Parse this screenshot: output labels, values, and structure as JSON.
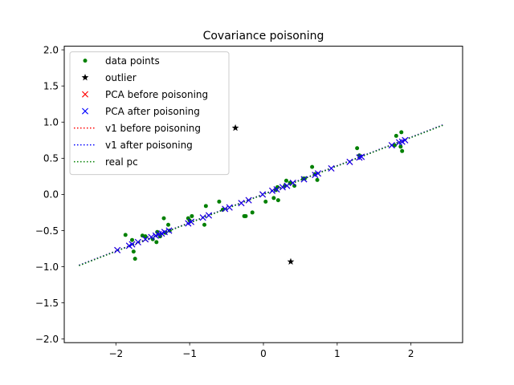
{
  "chart_data": {
    "type": "scatter",
    "title": "Covariance poisoning",
    "xlabel": "",
    "ylabel": "",
    "xlim": [
      -2.7,
      2.7
    ],
    "ylim": [
      -2.05,
      2.05
    ],
    "xticks": [
      -2,
      -1,
      0,
      1,
      2
    ],
    "xtick_labels": [
      "−2",
      "−1",
      "0",
      "1",
      "2"
    ],
    "yticks": [
      -2.0,
      -1.5,
      -1.0,
      -0.5,
      0.0,
      0.5,
      1.0,
      1.5,
      2.0
    ],
    "ytick_labels": [
      "−2.0",
      "−1.5",
      "−1.0",
      "−0.5",
      "0.0",
      "0.5",
      "1.0",
      "1.5",
      "2.0"
    ],
    "grid": false,
    "legend_position": "top-left",
    "series": [
      {
        "name": "data points",
        "marker": "dot",
        "color": "#008000",
        "points": [
          [
            -1.87,
            -0.56
          ],
          [
            -1.78,
            -0.63
          ],
          [
            -1.76,
            -0.79
          ],
          [
            -1.74,
            -0.89
          ],
          [
            -1.64,
            -0.57
          ],
          [
            -1.6,
            -0.58
          ],
          [
            -1.5,
            -0.62
          ],
          [
            -1.45,
            -0.66
          ],
          [
            -1.44,
            -0.52
          ],
          [
            -1.4,
            -0.58
          ],
          [
            -1.35,
            -0.33
          ],
          [
            -1.33,
            -0.53
          ],
          [
            -1.29,
            -0.42
          ],
          [
            -1.27,
            -0.5
          ],
          [
            -1.02,
            -0.33
          ],
          [
            -1.0,
            -0.36
          ],
          [
            -0.97,
            -0.3
          ],
          [
            -0.8,
            -0.42
          ],
          [
            -0.78,
            -0.16
          ],
          [
            -0.6,
            -0.1
          ],
          [
            -0.55,
            -0.21
          ],
          [
            -0.26,
            -0.3
          ],
          [
            -0.24,
            -0.3
          ],
          [
            -0.15,
            -0.25
          ],
          [
            0.03,
            -0.1
          ],
          [
            0.14,
            -0.05
          ],
          [
            0.17,
            0.06
          ],
          [
            0.19,
            0.1
          ],
          [
            0.2,
            -0.08
          ],
          [
            0.29,
            0.12
          ],
          [
            0.31,
            0.19
          ],
          [
            0.36,
            0.16
          ],
          [
            0.42,
            0.12
          ],
          [
            0.54,
            0.22
          ],
          [
            0.56,
            0.22
          ],
          [
            0.66,
            0.38
          ],
          [
            0.7,
            0.28
          ],
          [
            0.73,
            0.2
          ],
          [
            1.27,
            0.64
          ],
          [
            1.3,
            0.54
          ],
          [
            1.78,
            0.68
          ],
          [
            1.8,
            0.81
          ],
          [
            1.86,
            0.66
          ],
          [
            1.87,
            0.86
          ],
          [
            1.88,
            0.6
          ]
        ]
      },
      {
        "name": "outlier",
        "marker": "star",
        "color": "#000000",
        "points": [
          [
            -0.38,
            0.92
          ],
          [
            0.37,
            -0.93
          ]
        ]
      },
      {
        "name": "PCA before poisoning",
        "marker": "x",
        "color": "#ff0000",
        "points": [
          [
            -1.98,
            -0.77
          ],
          [
            -1.82,
            -0.71
          ],
          [
            -1.78,
            -0.69
          ],
          [
            -1.7,
            -0.66
          ],
          [
            -1.6,
            -0.62
          ],
          [
            -1.52,
            -0.59
          ],
          [
            -1.46,
            -0.57
          ],
          [
            -1.42,
            -0.55
          ],
          [
            -1.38,
            -0.54
          ],
          [
            -1.34,
            -0.52
          ],
          [
            -1.28,
            -0.5
          ],
          [
            -1.02,
            -0.4
          ],
          [
            -0.98,
            -0.38
          ],
          [
            -0.82,
            -0.32
          ],
          [
            -0.74,
            -0.29
          ],
          [
            -0.52,
            -0.2
          ],
          [
            -0.46,
            -0.18
          ],
          [
            -0.3,
            -0.12
          ],
          [
            -0.2,
            -0.08
          ],
          [
            -0.01,
            0.0
          ],
          [
            0.12,
            0.05
          ],
          [
            0.18,
            0.07
          ],
          [
            0.26,
            0.1
          ],
          [
            0.32,
            0.12
          ],
          [
            0.4,
            0.16
          ],
          [
            0.55,
            0.21
          ],
          [
            0.7,
            0.27
          ],
          [
            0.74,
            0.29
          ],
          [
            0.92,
            0.36
          ],
          [
            1.17,
            0.45
          ],
          [
            1.3,
            0.51
          ],
          [
            1.33,
            0.52
          ],
          [
            1.74,
            0.68
          ],
          [
            1.84,
            0.72
          ],
          [
            1.88,
            0.73
          ],
          [
            1.92,
            0.75
          ]
        ]
      },
      {
        "name": "PCA after poisoning",
        "marker": "x",
        "color": "#0000ff",
        "points": [
          [
            -1.98,
            -0.77
          ],
          [
            -1.82,
            -0.71
          ],
          [
            -1.78,
            -0.69
          ],
          [
            -1.7,
            -0.66
          ],
          [
            -1.6,
            -0.62
          ],
          [
            -1.52,
            -0.59
          ],
          [
            -1.46,
            -0.57
          ],
          [
            -1.42,
            -0.55
          ],
          [
            -1.38,
            -0.54
          ],
          [
            -1.34,
            -0.52
          ],
          [
            -1.28,
            -0.5
          ],
          [
            -1.02,
            -0.4
          ],
          [
            -0.98,
            -0.38
          ],
          [
            -0.82,
            -0.32
          ],
          [
            -0.74,
            -0.29
          ],
          [
            -0.52,
            -0.2
          ],
          [
            -0.46,
            -0.18
          ],
          [
            -0.3,
            -0.12
          ],
          [
            -0.2,
            -0.08
          ],
          [
            -0.01,
            0.0
          ],
          [
            0.12,
            0.05
          ],
          [
            0.18,
            0.07
          ],
          [
            0.26,
            0.1
          ],
          [
            0.32,
            0.12
          ],
          [
            0.4,
            0.16
          ],
          [
            0.55,
            0.21
          ],
          [
            0.7,
            0.27
          ],
          [
            0.74,
            0.29
          ],
          [
            0.92,
            0.36
          ],
          [
            1.17,
            0.45
          ],
          [
            1.3,
            0.51
          ],
          [
            1.33,
            0.52
          ],
          [
            1.74,
            0.68
          ],
          [
            1.84,
            0.72
          ],
          [
            1.88,
            0.73
          ],
          [
            1.92,
            0.75
          ]
        ]
      },
      {
        "name": "v1 before poisoning",
        "marker": "dotted-line",
        "color": "#ff0000",
        "points": [
          [
            -2.5,
            -0.98
          ],
          [
            2.43,
            0.96
          ]
        ]
      },
      {
        "name": "v1 after poisoning",
        "marker": "dotted-line",
        "color": "#0000ff",
        "points": [
          [
            -2.5,
            -0.98
          ],
          [
            2.43,
            0.96
          ]
        ]
      },
      {
        "name": "real pc",
        "marker": "dotted-line",
        "color": "#008000",
        "points": [
          [
            -2.5,
            -0.985
          ],
          [
            2.43,
            0.955
          ]
        ]
      }
    ]
  }
}
